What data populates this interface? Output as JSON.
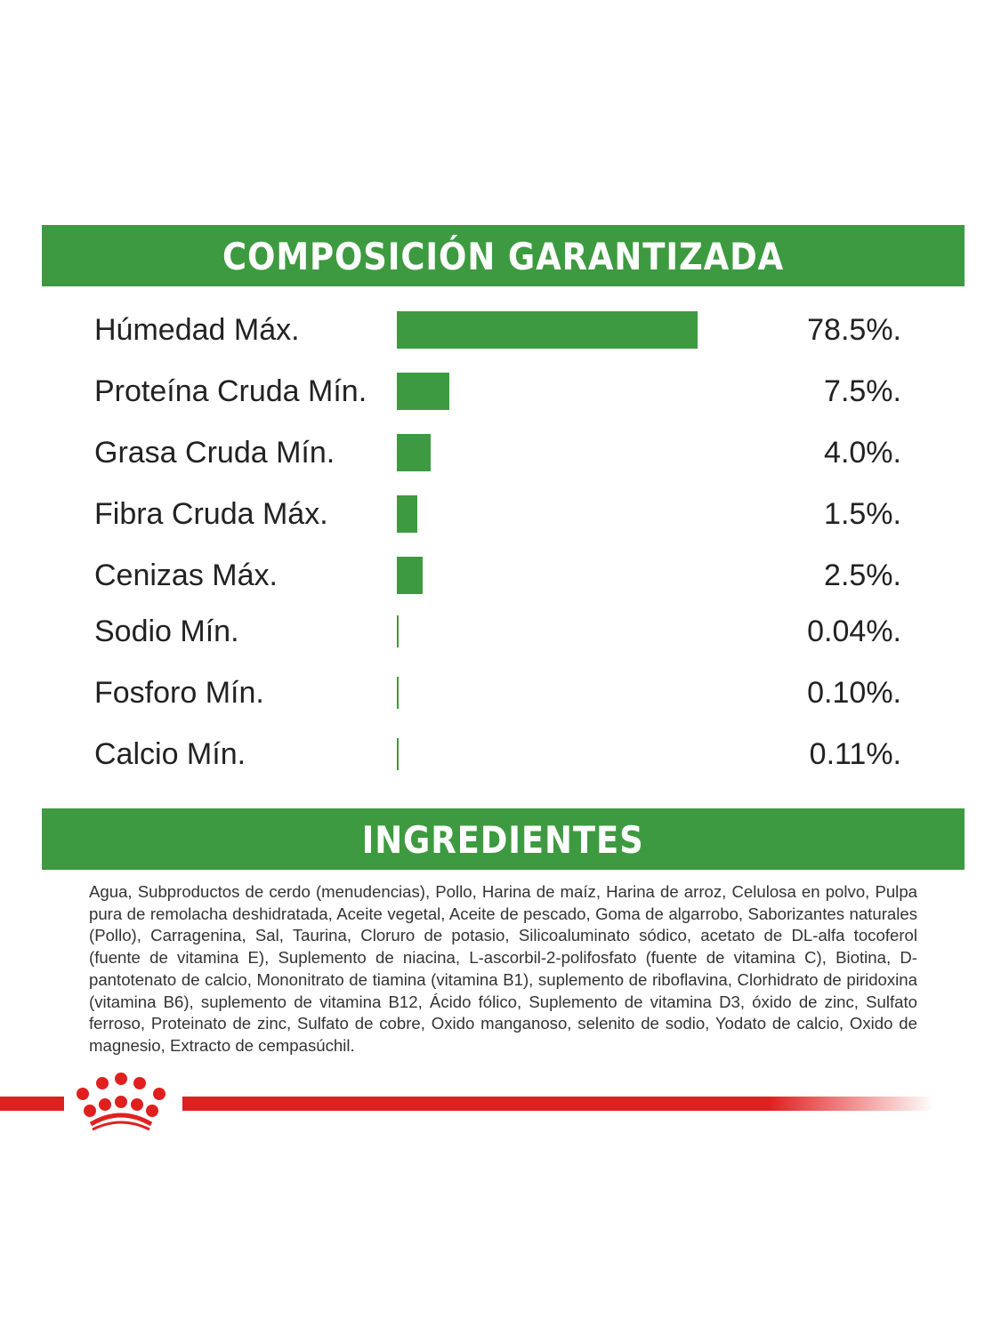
{
  "composition": {
    "title": "COMPOSICIÓN GARANTIZADA"
  },
  "chart_data": {
    "type": "bar",
    "title": "COMPOSICIÓN GARANTIZADA",
    "categories": [
      "Húmedad Máx.",
      "Proteína Cruda Mín.",
      "Grasa Cruda Mín.",
      "Fibra Cruda Máx.",
      "Cenizas Máx.",
      "Sodio Mín.",
      "Fosforo Mín.",
      "Calcio Mín."
    ],
    "values": [
      78.5,
      7.5,
      4.0,
      1.5,
      2.5,
      0.04,
      0.1,
      0.11
    ],
    "value_labels": [
      "78.5%.",
      "7.5%.",
      "4.0%.",
      "1.5%.",
      "2.5%.",
      "0.04%.",
      "0.10%.",
      "0.11%."
    ],
    "orientation": "horizontal",
    "color": "#3d9a40"
  },
  "ingredients": {
    "title": "INGREDIENTES",
    "text": "Agua, Subproductos de cerdo (menudencias), Pollo, Harina de maíz, Harina de arroz, Celulosa en polvo, Pulpa pura de remolacha deshidratada, Aceite vegetal, Aceite de pescado, Goma de algarrobo, Saborizantes naturales (Pollo), Carragenina, Sal, Taurina, Cloruro de potasio, Silicoaluminato sódico, acetato de DL-alfa tocoferol (fuente de vitamina E), Suplemento de niacina, L-ascorbil-2-polifosfato (fuente de vitamina C), Biotina, D-pantotenato de calcio, Mononitrato de tiamina (vitamina B1), suplemento de riboflavina, Clorhidrato de piridoxina (vitamina B6), suplemento de vitamina B12, Ácido fólico, Suplemento de vitamina D3, óxido de zinc, Sulfato ferroso, Proteinato de zinc, Sulfato de cobre, Oxido manganoso, selenito de sodio, Yodato de calcio, Oxido de magnesio, Extracto de cempasúchil."
  },
  "colors": {
    "green": "#3d9a40",
    "brand_red": "#e0201f"
  }
}
